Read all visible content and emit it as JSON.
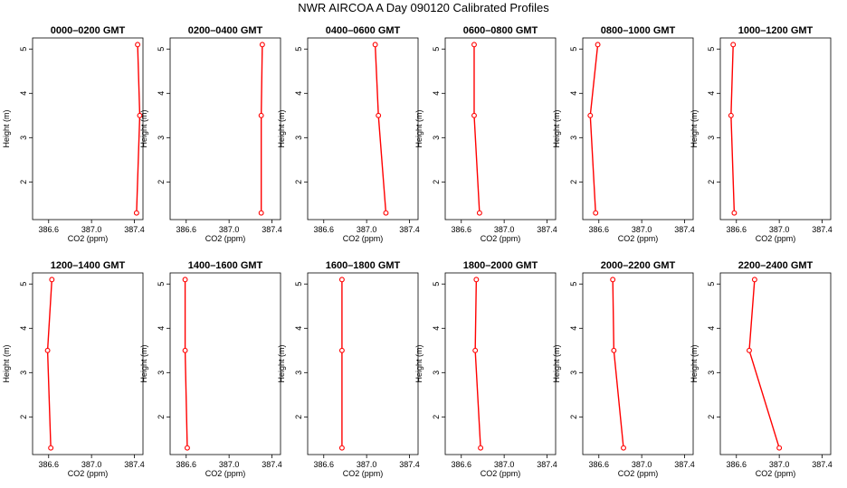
{
  "figure": {
    "title": "NWR AIRCOA A  Day 090120  Calibrated Profiles"
  },
  "chart_data": [
    {
      "type": "line",
      "title": "0000–0200 GMT",
      "xlabel": "CO2 (ppm)",
      "ylabel": "Height (m)",
      "x_ticks": [
        "386.6",
        "387.0",
        "387.4"
      ],
      "y_ticks": [
        "2",
        "3",
        "4",
        "5"
      ],
      "xlim": [
        386.45,
        387.48
      ],
      "ylim": [
        1.15,
        5.25
      ],
      "heights": [
        1.3,
        3.5,
        5.1
      ],
      "values": [
        387.42,
        387.45,
        387.43
      ],
      "line_color": "#ff0000",
      "grid": false
    },
    {
      "type": "line",
      "title": "0200–0400 GMT",
      "xlabel": "CO2 (ppm)",
      "ylabel": "Height (m)",
      "x_ticks": [
        "386.6",
        "387.0",
        "387.4"
      ],
      "y_ticks": [
        "2",
        "3",
        "4",
        "5"
      ],
      "xlim": [
        386.45,
        387.48
      ],
      "ylim": [
        1.15,
        5.25
      ],
      "heights": [
        1.3,
        3.5,
        5.1
      ],
      "values": [
        387.3,
        387.3,
        387.31
      ],
      "line_color": "#ff0000",
      "grid": false
    },
    {
      "type": "line",
      "title": "0400–0600 GMT",
      "xlabel": "CO2 (ppm)",
      "ylabel": "Height (m)",
      "x_ticks": [
        "386.6",
        "387.0",
        "387.4"
      ],
      "y_ticks": [
        "2",
        "3",
        "4",
        "5"
      ],
      "xlim": [
        386.45,
        387.48
      ],
      "ylim": [
        1.15,
        5.25
      ],
      "heights": [
        1.3,
        3.5,
        5.1
      ],
      "values": [
        387.18,
        387.11,
        387.08
      ],
      "line_color": "#ff0000",
      "grid": false
    },
    {
      "type": "line",
      "title": "0600–0800 GMT",
      "xlabel": "CO2 (ppm)",
      "ylabel": "Height (m)",
      "x_ticks": [
        "386.6",
        "387.0",
        "387.4"
      ],
      "y_ticks": [
        "2",
        "3",
        "4",
        "5"
      ],
      "xlim": [
        386.45,
        387.48
      ],
      "ylim": [
        1.15,
        5.25
      ],
      "heights": [
        1.3,
        3.5,
        5.1
      ],
      "values": [
        386.77,
        386.72,
        386.72
      ],
      "line_color": "#ff0000",
      "grid": false
    },
    {
      "type": "line",
      "title": "0800–1000 GMT",
      "xlabel": "CO2 (ppm)",
      "ylabel": "Height (m)",
      "x_ticks": [
        "386.6",
        "387.0",
        "387.4"
      ],
      "y_ticks": [
        "2",
        "3",
        "4",
        "5"
      ],
      "xlim": [
        386.45,
        387.48
      ],
      "ylim": [
        1.15,
        5.25
      ],
      "heights": [
        1.3,
        3.5,
        5.1
      ],
      "values": [
        386.57,
        386.52,
        386.59
      ],
      "line_color": "#ff0000",
      "grid": false
    },
    {
      "type": "line",
      "title": "1000–1200 GMT",
      "xlabel": "CO2 (ppm)",
      "ylabel": "Height (m)",
      "x_ticks": [
        "386.6",
        "387.0",
        "387.4"
      ],
      "y_ticks": [
        "2",
        "3",
        "4",
        "5"
      ],
      "xlim": [
        386.45,
        387.48
      ],
      "ylim": [
        1.15,
        5.25
      ],
      "heights": [
        1.3,
        3.5,
        5.1
      ],
      "values": [
        386.58,
        386.55,
        386.57
      ],
      "line_color": "#ff0000",
      "grid": false
    },
    {
      "type": "line",
      "title": "1200–1400 GMT",
      "xlabel": "CO2 (ppm)",
      "ylabel": "Height (m)",
      "x_ticks": [
        "386.6",
        "387.0",
        "387.4"
      ],
      "y_ticks": [
        "2",
        "3",
        "4",
        "5"
      ],
      "xlim": [
        386.45,
        387.48
      ],
      "ylim": [
        1.15,
        5.25
      ],
      "heights": [
        1.3,
        3.5,
        5.1
      ],
      "values": [
        386.62,
        386.59,
        386.63
      ],
      "line_color": "#ff0000",
      "grid": false
    },
    {
      "type": "line",
      "title": "1400–1600 GMT",
      "xlabel": "CO2 (ppm)",
      "ylabel": "Height (m)",
      "x_ticks": [
        "386.6",
        "387.0",
        "387.4"
      ],
      "y_ticks": [
        "2",
        "3",
        "4",
        "5"
      ],
      "xlim": [
        386.45,
        387.48
      ],
      "ylim": [
        1.15,
        5.25
      ],
      "heights": [
        1.3,
        3.5,
        5.1
      ],
      "values": [
        386.61,
        386.59,
        386.59
      ],
      "line_color": "#ff0000",
      "grid": false
    },
    {
      "type": "line",
      "title": "1600–1800 GMT",
      "xlabel": "CO2 (ppm)",
      "ylabel": "Height (m)",
      "x_ticks": [
        "386.6",
        "387.0",
        "387.4"
      ],
      "y_ticks": [
        "2",
        "3",
        "4",
        "5"
      ],
      "xlim": [
        386.45,
        387.48
      ],
      "ylim": [
        1.15,
        5.25
      ],
      "heights": [
        1.3,
        3.5,
        5.1
      ],
      "values": [
        386.77,
        386.77,
        386.77
      ],
      "line_color": "#ff0000",
      "grid": false
    },
    {
      "type": "line",
      "title": "1800–2000 GMT",
      "xlabel": "CO2 (ppm)",
      "ylabel": "Height (m)",
      "x_ticks": [
        "386.6",
        "387.0",
        "387.4"
      ],
      "y_ticks": [
        "2",
        "3",
        "4",
        "5"
      ],
      "xlim": [
        386.45,
        387.48
      ],
      "ylim": [
        1.15,
        5.25
      ],
      "heights": [
        1.3,
        3.5,
        5.1
      ],
      "values": [
        386.78,
        386.73,
        386.74
      ],
      "line_color": "#ff0000",
      "grid": false
    },
    {
      "type": "line",
      "title": "2000–2200 GMT",
      "xlabel": "CO2 (ppm)",
      "ylabel": "Height (m)",
      "x_ticks": [
        "386.6",
        "387.0",
        "387.4"
      ],
      "y_ticks": [
        "2",
        "3",
        "4",
        "5"
      ],
      "xlim": [
        386.45,
        387.48
      ],
      "ylim": [
        1.15,
        5.25
      ],
      "heights": [
        1.3,
        3.5,
        5.1
      ],
      "values": [
        386.83,
        386.74,
        386.73
      ],
      "line_color": "#ff0000",
      "grid": false
    },
    {
      "type": "line",
      "title": "2200–2400 GMT",
      "xlabel": "CO2 (ppm)",
      "ylabel": "Height (m)",
      "x_ticks": [
        "386.6",
        "387.0",
        "387.4"
      ],
      "y_ticks": [
        "2",
        "3",
        "4",
        "5"
      ],
      "xlim": [
        386.45,
        387.48
      ],
      "ylim": [
        1.15,
        5.25
      ],
      "heights": [
        1.3,
        3.5,
        5.1
      ],
      "values": [
        387.0,
        386.72,
        386.77
      ],
      "line_color": "#ff0000",
      "grid": false
    }
  ]
}
